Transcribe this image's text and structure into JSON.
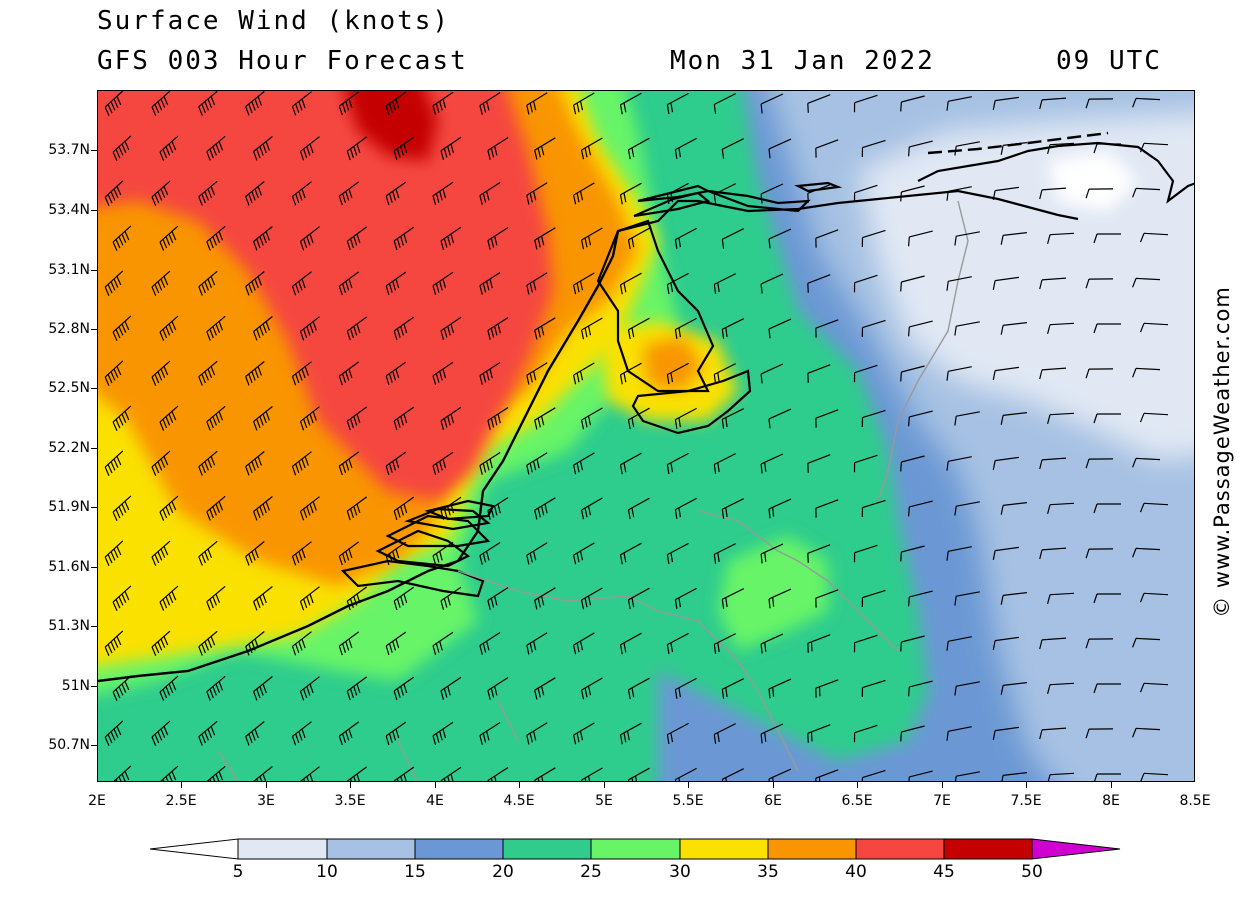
{
  "header": {
    "title": "Surface Wind (knots)",
    "subtitle": "GFS 003 Hour Forecast",
    "date": "Mon 31 Jan 2022",
    "time": "09 UTC"
  },
  "map": {
    "lat_labels": [
      "53.7N",
      "53.4N",
      "53.1N",
      "52.8N",
      "52.5N",
      "52.2N",
      "51.9N",
      "51.6N",
      "51.3N",
      "51N",
      "50.7N"
    ],
    "lon_labels": [
      "2E",
      "2.5E",
      "3E",
      "3.5E",
      "4E",
      "4.5E",
      "5E",
      "5.5E",
      "6E",
      "6.5E",
      "7E",
      "7.5E",
      "8E",
      "8.5E"
    ],
    "credit": "© www.PassageWeather.com",
    "wind_field": "strongest winds (45-50+ kt) over the North Sea off the Dutch coast, decreasing to 5-15 kt over northern Germany",
    "colors": {
      "c5_10": "#e1e8f4",
      "c10_15": "#a6c1e3",
      "c15_20": "#6b98d4",
      "c20_25": "#2fcc8d",
      "c25_30": "#67f467",
      "c30_35": "#fae100",
      "c35_40": "#f99500",
      "c40_45": "#f5463f",
      "c45_50": "#c50000",
      "c50_plus": "#d000d0"
    }
  },
  "legend": {
    "labels": [
      "5",
      "10",
      "15",
      "20",
      "25",
      "30",
      "35",
      "40",
      "45",
      "50"
    ]
  }
}
